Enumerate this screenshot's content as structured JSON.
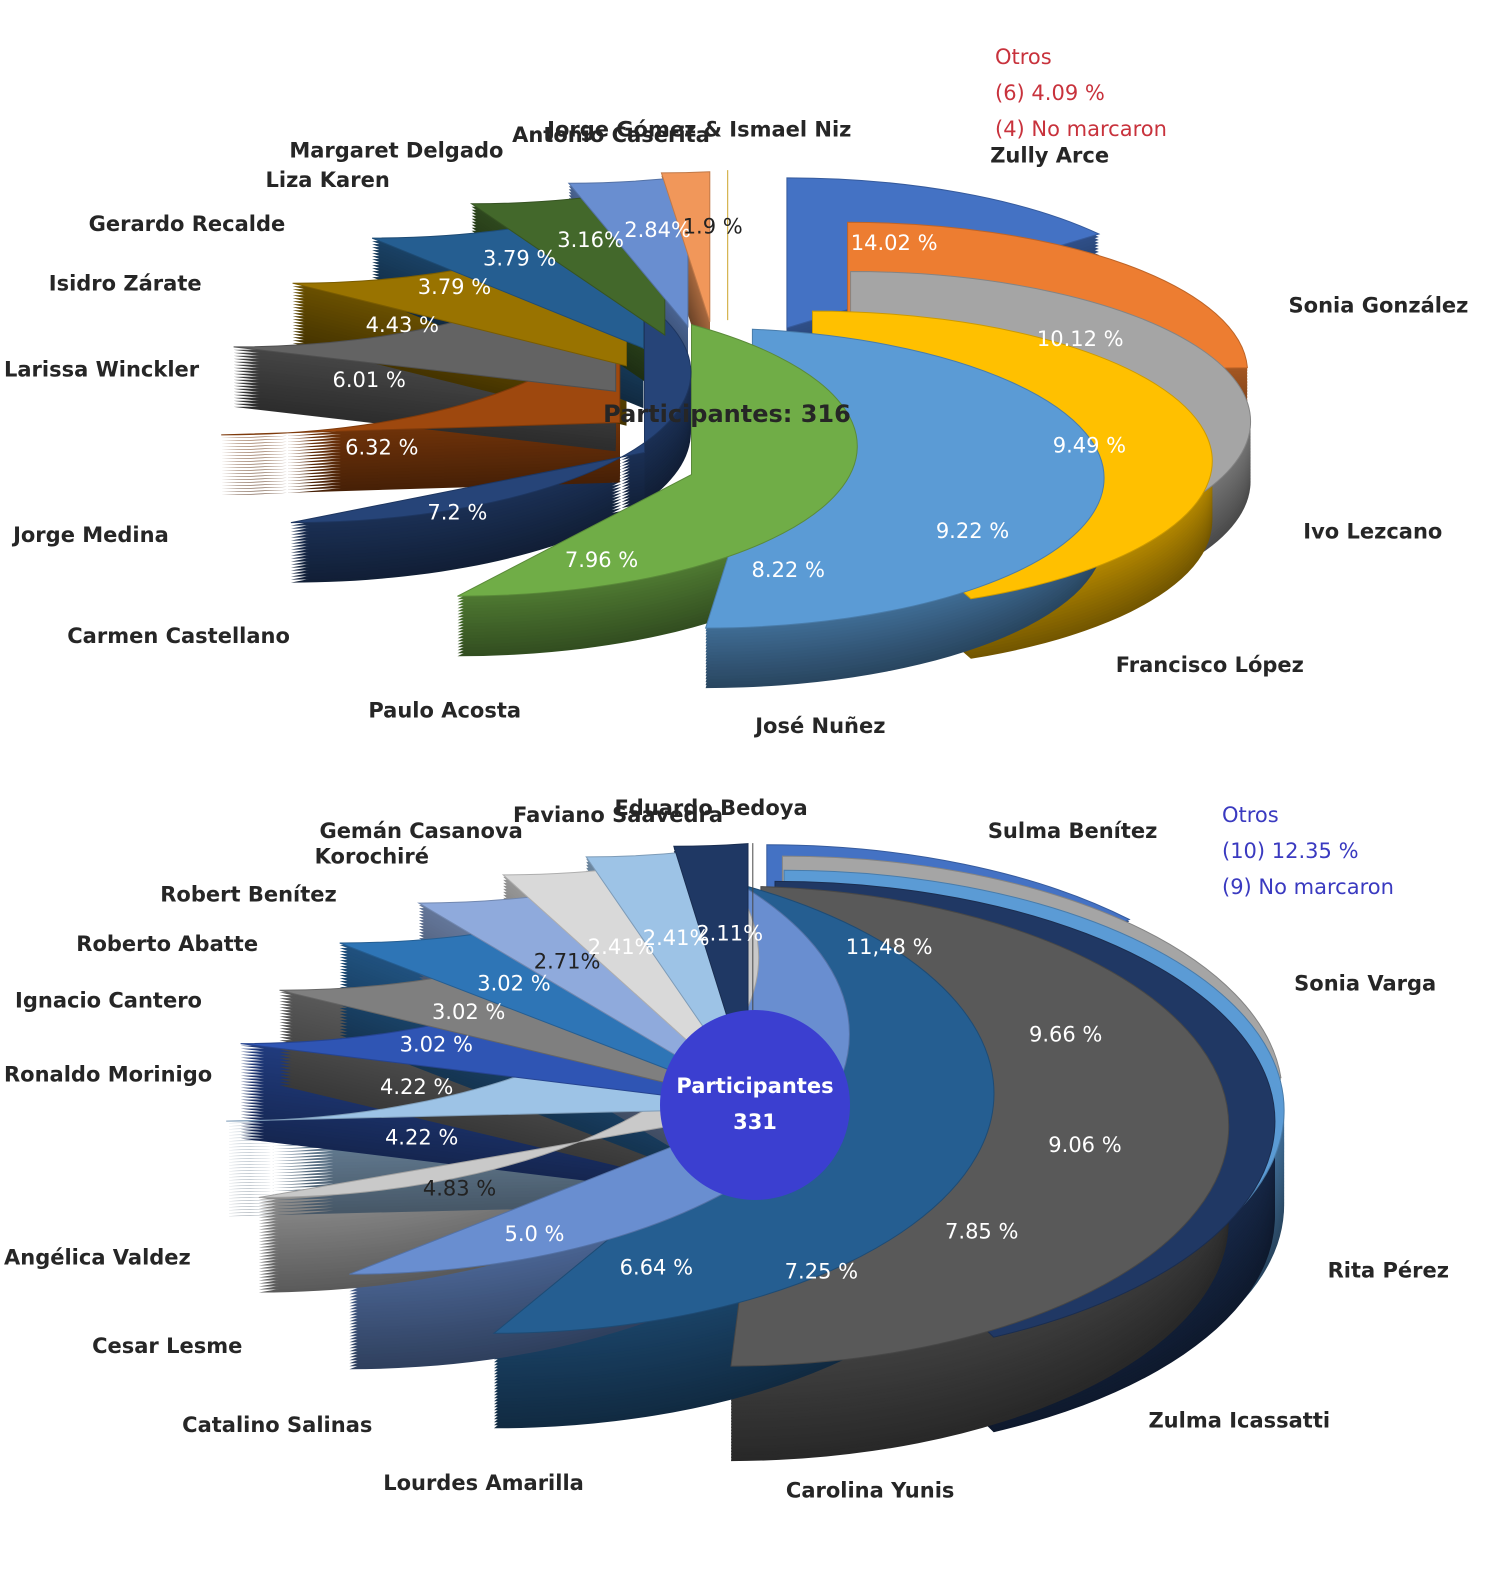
{
  "chart_data": [
    {
      "type": "pie",
      "center_label": "Participantes: 316",
      "annotations": [
        "Otros",
        "(6) 4.09 %",
        "(4) No marcaron"
      ],
      "annotation_color": "#c8323c",
      "categories": [
        "Zully Arce",
        "Sonia González",
        "Ivo Lezcano",
        "Francisco López",
        "José Nuñez",
        "Paulo Acosta",
        "Carmen Castellano",
        "Jorge Medina",
        "Larissa Winckler",
        "Isidro Zárate",
        "Gerardo Recalde",
        "Liza Karen",
        "Margaret Delgado",
        "Antonio Caserita",
        "Jorge Gómez & Ismael Niz"
      ],
      "values": [
        14.02,
        10.12,
        9.49,
        9.22,
        8.22,
        7.96,
        7.2,
        6.32,
        6.01,
        4.43,
        3.79,
        3.79,
        3.16,
        2.84,
        1.9
      ],
      "value_labels": [
        "14.02 %",
        "10.12 %",
        "9.49 %",
        "9.22 %",
        "8.22 %",
        "7.96 %",
        "7.2 %",
        "6.32 %",
        "6.01 %",
        "4.43 %",
        "3.79 %",
        "3.79 %",
        "3.16%",
        "2.84%",
        "1.9 %"
      ],
      "colors": [
        "#4472c4",
        "#ed7d31",
        "#a5a5a5",
        "#ffc000",
        "#5b9bd5",
        "#70ad47",
        "#264478",
        "#9e480e",
        "#636363",
        "#997300",
        "#255e91",
        "#43682b",
        "#698ed0",
        "#f1975a",
        "#ffcd33"
      ]
    },
    {
      "type": "pie",
      "center_label": "Participantes",
      "center_value": 331,
      "annotations": [
        "Otros",
        "(10) 12.35 %",
        "(9) No marcaron"
      ],
      "annotation_color": "#3a3ac0",
      "categories": [
        "Sulma Benítez",
        "Sonia Varga",
        "Rita Pérez",
        "Zulma Icassatti",
        "Carolina Yunis",
        "Lourdes Amarilla",
        "Catalino Salinas",
        "Cesar Lesme",
        "Angélica Valdez",
        "Ronaldo Morinigo",
        "Ignacio Cantero",
        "Roberto Abatte",
        "Robert Benítez",
        "Korochiré",
        "Gemán Casanova",
        "Faviano Saavedra",
        "Eduardo Bedoya"
      ],
      "values": [
        11.48,
        9.66,
        9.06,
        7.85,
        7.25,
        6.64,
        5,
        4.83,
        4.22,
        4.22,
        3.02,
        3.02,
        3.02,
        2.71,
        2.41,
        2.41,
        2.11
      ],
      "value_labels": [
        "11,48 %",
        "9.66 %",
        "9.06 %",
        "7.85 %",
        "7.25 %",
        "6.64 %",
        "5.0 %",
        "4.83 %",
        "4.22 %",
        "4.22 %",
        "3.02 %",
        "3.02 %",
        "3.02 %",
        "2.71%",
        "2.41%",
        "2.41%",
        "2.11%"
      ],
      "colors": [
        "#4472c4",
        "#a5a5a5",
        "#5b9bd5",
        "#203864",
        "#595959",
        "#255e91",
        "#698ed0",
        "#c9c9c9",
        "#9dc3e6",
        "#2f55b4",
        "#7f7f7f",
        "#2e75b6",
        "#8faadc",
        "#d9d9d9",
        "#9dc3e6",
        "#1f3864",
        "#595959"
      ]
    }
  ]
}
